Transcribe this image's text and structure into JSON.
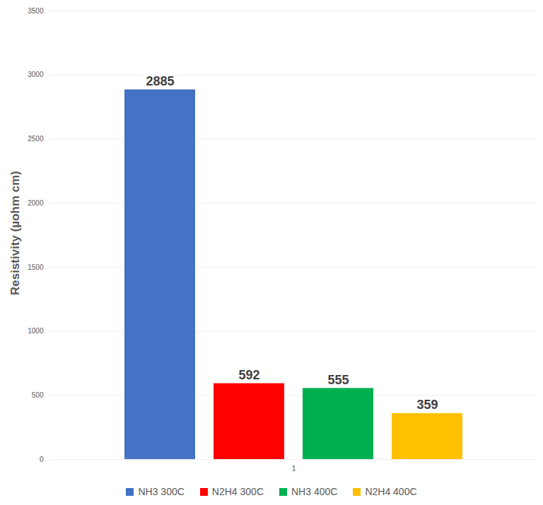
{
  "chart_data": {
    "type": "bar",
    "ylabel": "Resistivity (µohm cm)",
    "categories": [
      "1"
    ],
    "series": [
      {
        "name": "NH3 300C",
        "color": "#4472c4",
        "values": [
          2885
        ]
      },
      {
        "name": "N2H4 300C",
        "color": "#ff0000",
        "values": [
          592
        ]
      },
      {
        "name": "NH3 400C",
        "color": "#00b050",
        "values": [
          555
        ]
      },
      {
        "name": "N2H4 400C",
        "color": "#ffc000",
        "values": [
          359
        ]
      }
    ],
    "ylim": [
      0,
      3500
    ],
    "yticks": [
      0,
      500,
      1000,
      1500,
      2000,
      2500,
      3000,
      3500
    ],
    "grid": true,
    "data_labels": true,
    "legend": "bottom"
  }
}
